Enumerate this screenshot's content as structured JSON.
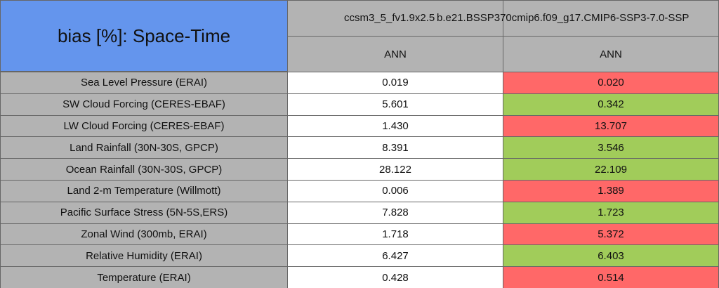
{
  "header": {
    "title": "bias [%]: Space-Time",
    "columns": [
      {
        "name": "ccsm3_5_fv1.9x2.5",
        "period": "ANN"
      },
      {
        "name": "b.e21.BSSP370cmip6.f09_g17.CMIP6-SSP3-7.0-SSP",
        "period": "ANN"
      }
    ]
  },
  "table": {
    "rows": [
      {
        "label": "Sea Level Pressure (ERAI)",
        "cells": [
          "0.019",
          "0.020"
        ],
        "colors": [
          "#ffffff",
          "#ff6868"
        ]
      },
      {
        "label": "SW Cloud Forcing (CERES-EBAF)",
        "cells": [
          "5.601",
          "0.342"
        ],
        "colors": [
          "#ffffff",
          "#a1cc5a"
        ]
      },
      {
        "label": "LW Cloud Forcing (CERES-EBAF)",
        "cells": [
          "1.430",
          "13.707"
        ],
        "colors": [
          "#ffffff",
          "#ff6868"
        ]
      },
      {
        "label": "Land Rainfall (30N-30S, GPCP)",
        "cells": [
          "8.391",
          "3.546"
        ],
        "colors": [
          "#ffffff",
          "#a1cc5a"
        ]
      },
      {
        "label": "Ocean Rainfall (30N-30S, GPCP)",
        "cells": [
          "28.122",
          "22.109"
        ],
        "colors": [
          "#ffffff",
          "#a1cc5a"
        ]
      },
      {
        "label": "Land 2-m Temperature (Willmott)",
        "cells": [
          "0.006",
          "1.389"
        ],
        "colors": [
          "#ffffff",
          "#ff6868"
        ]
      },
      {
        "label": "Pacific Surface Stress (5N-5S,ERS)",
        "cells": [
          "7.828",
          "1.723"
        ],
        "colors": [
          "#ffffff",
          "#a1cc5a"
        ]
      },
      {
        "label": "Zonal Wind (300mb, ERAI)",
        "cells": [
          "1.718",
          "5.372"
        ],
        "colors": [
          "#ffffff",
          "#ff6868"
        ]
      },
      {
        "label": "Relative Humidity (ERAI)",
        "cells": [
          "6.427",
          "6.403"
        ],
        "colors": [
          "#ffffff",
          "#a1cc5a"
        ]
      },
      {
        "label": "Temperature (ERAI)",
        "cells": [
          "0.428",
          "0.514"
        ],
        "colors": [
          "#ffffff",
          "#ff6868"
        ]
      }
    ]
  }
}
